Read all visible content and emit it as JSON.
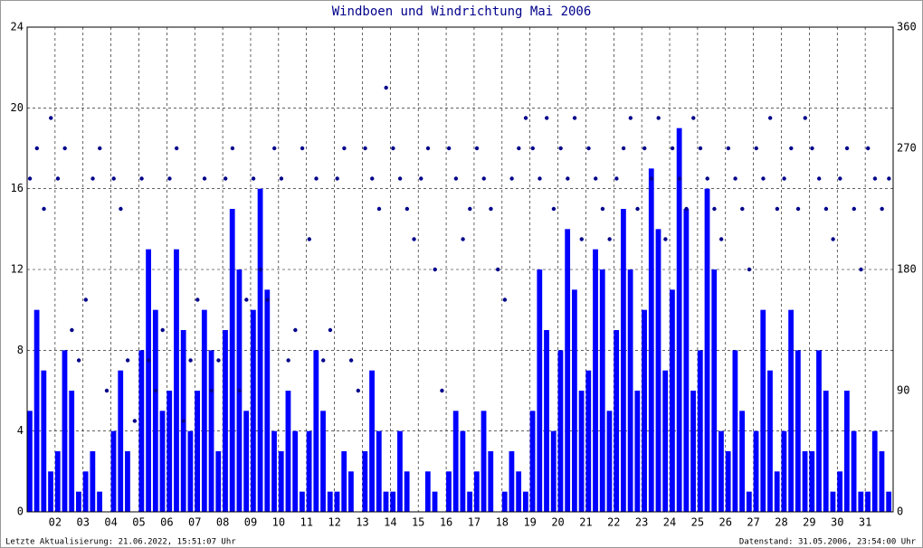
{
  "chart_data": {
    "type": "bar",
    "title": "Windboen und Windrichtung Mai 2006",
    "footer_left": "Letzte Aktualisierung: 21.06.2022, 15:51:07 Uhr",
    "footer_right": "Datenstand: 31.05.2006, 23:54:00 Uhr",
    "grid": true,
    "xlim": [
      1,
      32
    ],
    "xticks": [
      {
        "value": 2,
        "label": "02"
      },
      {
        "value": 3,
        "label": "03"
      },
      {
        "value": 4,
        "label": "04"
      },
      {
        "value": 5,
        "label": "05"
      },
      {
        "value": 6,
        "label": "06"
      },
      {
        "value": 7,
        "label": "07"
      },
      {
        "value": 8,
        "label": "08"
      },
      {
        "value": 9,
        "label": "09"
      },
      10,
      11,
      12,
      13,
      14,
      15,
      16,
      17,
      18,
      19,
      20,
      21,
      22,
      23,
      24,
      25,
      26,
      27,
      28,
      29,
      30,
      31
    ],
    "ylim": [
      0,
      24
    ],
    "yticks": [
      0,
      4,
      8,
      12,
      16,
      20,
      24
    ],
    "y2lim": [
      0,
      360
    ],
    "y2ticks": [
      0,
      90,
      180,
      270,
      360
    ],
    "x": [
      1,
      1.25,
      1.5,
      1.75,
      2,
      2.25,
      2.5,
      2.75,
      3,
      3.25,
      3.5,
      3.75,
      4,
      4.25,
      4.5,
      4.75,
      5,
      5.25,
      5.5,
      5.75,
      6,
      6.25,
      6.5,
      6.75,
      7,
      7.25,
      7.5,
      7.75,
      8,
      8.25,
      8.5,
      8.75,
      9,
      9.25,
      9.5,
      9.75,
      10,
      10.25,
      10.5,
      10.75,
      11,
      11.25,
      11.5,
      11.75,
      12,
      12.25,
      12.5,
      12.75,
      13,
      13.25,
      13.5,
      13.75,
      14,
      14.25,
      14.5,
      14.75,
      15,
      15.25,
      15.5,
      15.75,
      16,
      16.25,
      16.5,
      16.75,
      17,
      17.25,
      17.5,
      17.75,
      18,
      18.25,
      18.5,
      18.75,
      19,
      19.25,
      19.5,
      19.75,
      20,
      20.25,
      20.5,
      20.75,
      21,
      21.25,
      21.5,
      21.75,
      22,
      22.25,
      22.5,
      22.75,
      23,
      23.25,
      23.5,
      23.75,
      24,
      24.25,
      24.5,
      24.75,
      25,
      25.25,
      25.5,
      25.75,
      26,
      26.25,
      26.5,
      26.75,
      27,
      27.25,
      27.5,
      27.75,
      28,
      28.25,
      28.5,
      28.75,
      29,
      29.25,
      29.5,
      29.75,
      30,
      30.25,
      30.5,
      30.75,
      31,
      31.25,
      31.5,
      31.75
    ],
    "series": [
      {
        "type": "bar",
        "color": "#0000ff",
        "values": [
          5,
          10,
          7,
          2,
          3,
          8,
          6,
          1,
          2,
          3,
          1,
          0,
          4,
          7,
          3,
          0,
          8,
          13,
          10,
          5,
          6,
          13,
          9,
          4,
          6,
          10,
          8,
          3,
          9,
          15,
          12,
          5,
          10,
          16,
          11,
          4,
          3,
          6,
          4,
          1,
          4,
          8,
          5,
          1,
          1,
          3,
          2,
          0,
          3,
          7,
          4,
          1,
          1,
          4,
          2,
          0,
          0,
          2,
          1,
          0,
          2,
          5,
          4,
          1,
          2,
          5,
          3,
          0,
          1,
          3,
          2,
          1,
          5,
          12,
          9,
          4,
          8,
          14,
          11,
          6,
          7,
          13,
          12,
          5,
          9,
          15,
          12,
          6,
          10,
          17,
          14,
          7,
          11,
          19,
          15,
          6,
          8,
          16,
          12,
          4,
          3,
          8,
          5,
          1,
          4,
          10,
          7,
          2,
          4,
          10,
          8,
          3,
          3,
          8,
          6,
          1,
          2,
          6,
          4,
          1,
          1,
          4,
          3,
          1
        ]
      },
      {
        "type": "scatter",
        "axis": "y2",
        "color": "#00008b",
        "values": [
          247.5,
          270,
          225,
          292.5,
          247.5,
          270,
          135,
          112.5,
          157.5,
          247.5,
          270,
          90,
          247.5,
          225,
          112.5,
          67.5,
          247.5,
          112.5,
          90,
          135,
          247.5,
          270,
          67.5,
          112.5,
          157.5,
          247.5,
          90,
          112.5,
          247.5,
          270,
          90,
          157.5,
          247.5,
          180,
          157.5,
          270,
          247.5,
          112.5,
          135,
          270,
          202.5,
          247.5,
          112.5,
          135,
          247.5,
          270,
          112.5,
          90,
          270,
          247.5,
          225,
          315,
          270,
          247.5,
          225,
          202.5,
          247.5,
          270,
          180,
          90,
          270,
          247.5,
          202.5,
          225,
          270,
          247.5,
          225,
          180,
          157.5,
          247.5,
          270,
          292.5,
          270,
          247.5,
          292.5,
          225,
          270,
          247.5,
          292.5,
          202.5,
          270,
          247.5,
          225,
          202.5,
          247.5,
          270,
          292.5,
          225,
          270,
          247.5,
          292.5,
          202.5,
          270,
          247.5,
          225,
          292.5,
          270,
          247.5,
          225,
          202.5,
          270,
          247.5,
          225,
          180,
          270,
          247.5,
          292.5,
          225,
          247.5,
          270,
          225,
          292.5,
          270,
          247.5,
          225,
          202.5,
          247.5,
          270,
          225,
          180,
          270,
          247.5,
          225,
          247.5
        ]
      }
    ]
  }
}
